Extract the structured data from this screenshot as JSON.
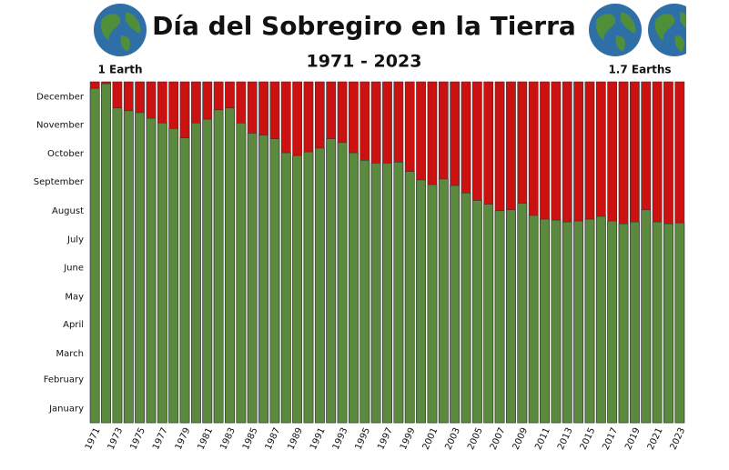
{
  "chart_data": {
    "type": "bar",
    "title": "Día del Sobregiro en la Tierra",
    "subtitle": "1971 - 2023",
    "annotations": [
      "1 Earth",
      "1.7 Earths"
    ],
    "categories": [
      "1971",
      null,
      "1973",
      null,
      "1975",
      null,
      "1977",
      null,
      "1979",
      null,
      "1981",
      null,
      "1983",
      null,
      "1985",
      null,
      "1987",
      null,
      "1989",
      null,
      "1991",
      null,
      "1993",
      null,
      "1995",
      null,
      "1997",
      null,
      "1999",
      null,
      "2001",
      null,
      "2003",
      null,
      "2005",
      null,
      "2007",
      null,
      "2009",
      null,
      "2011",
      null,
      "2013",
      null,
      "2015",
      null,
      "2017",
      null,
      "2019",
      null,
      "2021",
      null,
      "2023"
    ],
    "values": [
      358,
      363,
      337,
      334,
      332,
      326,
      321,
      315,
      305,
      321,
      325,
      335,
      337,
      321,
      310,
      308,
      304,
      289,
      286,
      290,
      294,
      304,
      300,
      289,
      281,
      278,
      278,
      279,
      269,
      260,
      255,
      261,
      254,
      246,
      238,
      234,
      227,
      228,
      235,
      222,
      218,
      217,
      215,
      216,
      218,
      221,
      216,
      213,
      215,
      228,
      215,
      213,
      214
    ],
    "color": "#5b8a3f",
    "remainder_color": "#cc1111",
    "ylim": [
      0,
      365
    ],
    "yticks": [
      {
        "value": 15,
        "label": "January"
      },
      {
        "value": 46,
        "label": "February"
      },
      {
        "value": 74,
        "label": "March"
      },
      {
        "value": 105,
        "label": "April"
      },
      {
        "value": 135,
        "label": "May"
      },
      {
        "value": 166,
        "label": "June"
      },
      {
        "value": 196,
        "label": "July"
      },
      {
        "value": 227,
        "label": "August"
      },
      {
        "value": 258,
        "label": "September"
      },
      {
        "value": 288,
        "label": "October"
      },
      {
        "value": 319,
        "label": "November"
      },
      {
        "value": 349,
        "label": "December"
      }
    ],
    "grid": false
  }
}
